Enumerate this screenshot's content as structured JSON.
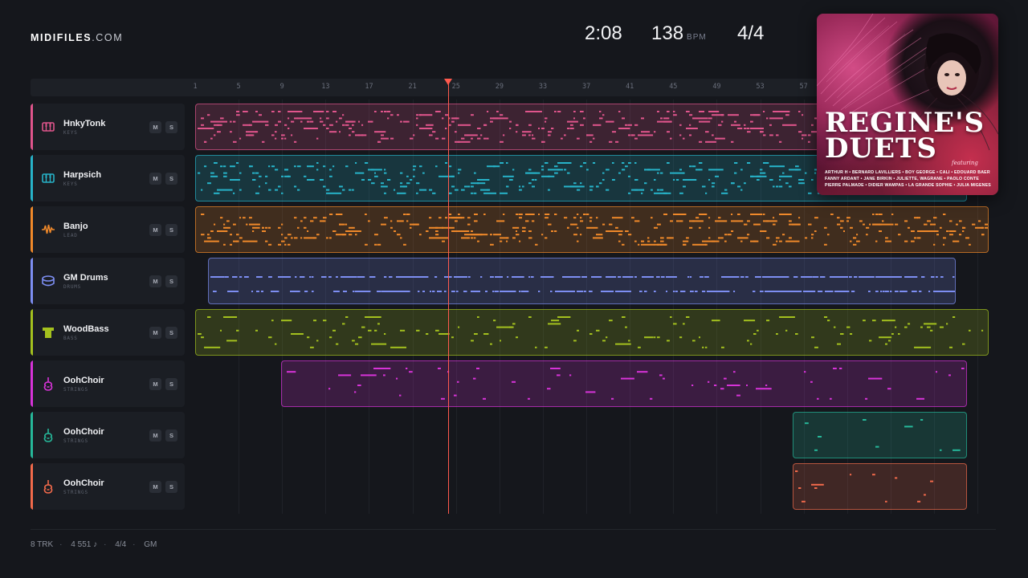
{
  "brand": {
    "bold": "MIDIFILES",
    "light": ".COM"
  },
  "transport": {
    "time": "2:08",
    "bpm": "138",
    "bpm_unit": "BPM",
    "signature": "4/4"
  },
  "ruler": {
    "ticks": [
      "1",
      "5",
      "9",
      "13",
      "17",
      "21",
      "25",
      "29",
      "33",
      "37",
      "41",
      "45",
      "49",
      "53",
      "57"
    ]
  },
  "playhead_bar": 24.3,
  "album": {
    "title_line1": "REGINE'S",
    "title_line2": "DUETS",
    "featuring": "featuring",
    "artists": "ARTHUR H • BERNARD LAVILLIERS • BOY GEORGE • CALI • EDOUARD BAER FANNY ARDANT • JANE BIRKIN • JULIETTE, WAGRANE • PAOLO CONTE PIERRE PALMADE • DIDIER WAMPAS • LA GRANDE SOPHIE • JULIA MIGENES"
  },
  "tracks": [
    {
      "name": "HnkyTonk",
      "type": "KEYS",
      "color": "#e0558c",
      "icon": "piano-icon",
      "mute_label": "M",
      "solo_label": "S",
      "clip_start_bar": 1,
      "clip_end_bar": 72
    },
    {
      "name": "Harpsich",
      "type": "KEYS",
      "color": "#27b3c9",
      "icon": "piano-icon",
      "mute_label": "M",
      "solo_label": "S",
      "clip_start_bar": 1,
      "clip_end_bar": 72
    },
    {
      "name": "Banjo",
      "type": "LEAD",
      "color": "#f0892a",
      "icon": "waveform-icon",
      "mute_label": "M",
      "solo_label": "S",
      "clip_start_bar": 1,
      "clip_end_bar": 74
    },
    {
      "name": "GM Drums",
      "type": "DRUMS",
      "color": "#7d8ef2",
      "icon": "drum-icon",
      "mute_label": "M",
      "solo_label": "S",
      "clip_start_bar": 2.2,
      "clip_end_bar": 71
    },
    {
      "name": "WoodBass",
      "type": "BASS",
      "color": "#a4c11e",
      "icon": "bass-amp-icon",
      "mute_label": "M",
      "solo_label": "S",
      "clip_start_bar": 1,
      "clip_end_bar": 74
    },
    {
      "name": "OohChoir",
      "type": "STRINGS",
      "color": "#d733d8",
      "icon": "violin-icon",
      "mute_label": "M",
      "solo_label": "S",
      "clip_start_bar": 8.9,
      "clip_end_bar": 72
    },
    {
      "name": "OohChoir",
      "type": "STRINGS",
      "color": "#26b89a",
      "icon": "violin-icon",
      "mute_label": "M",
      "solo_label": "S",
      "clip_start_bar": 56,
      "clip_end_bar": 72
    },
    {
      "name": "OohChoir",
      "type": "STRINGS",
      "color": "#f26a4b",
      "icon": "violin-icon",
      "mute_label": "M",
      "solo_label": "S",
      "clip_start_bar": 56,
      "clip_end_bar": 72
    }
  ],
  "footer": {
    "tracks": "8 TRK",
    "notes": "4 551 ♪",
    "signature": "4/4",
    "format": "GM"
  }
}
